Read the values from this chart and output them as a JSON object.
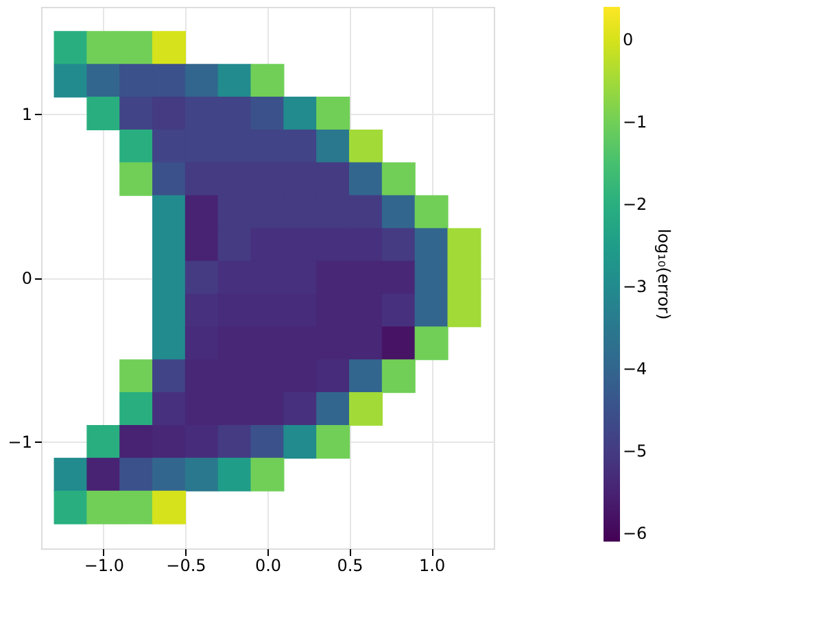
{
  "chart_data": {
    "type": "scatter",
    "marker": "square",
    "grid": true,
    "clabel": "log₁₀(error)",
    "clim": [
      -6.1,
      0.4
    ],
    "cticks": [
      {
        "value": -6,
        "label": "−6"
      },
      {
        "value": -5,
        "label": "−5"
      },
      {
        "value": -4,
        "label": "−4"
      },
      {
        "value": -3,
        "label": "−3"
      },
      {
        "value": -2,
        "label": "−2"
      },
      {
        "value": -1,
        "label": "−1"
      },
      0
    ],
    "xlim": [
      -1.38,
      1.38
    ],
    "ylim": [
      -1.65,
      1.65
    ],
    "xticks": [
      {
        "value": -1.0,
        "label": "−1.0"
      },
      {
        "value": -0.5,
        "label": "−0.5"
      },
      {
        "value": 0,
        "label": "0.0"
      },
      {
        "value": 0.5,
        "label": "0.5"
      },
      {
        "value": 1.0,
        "label": "1.0"
      }
    ],
    "yticks": [
      {
        "value": -1,
        "label": "−1"
      },
      0,
      1
    ],
    "x": [
      -1.2,
      -1.0,
      -0.8,
      -0.6,
      -1.2,
      -1.0,
      -0.8,
      -0.6,
      -0.4,
      -0.2,
      0.0,
      -1.0,
      -0.8,
      -0.6,
      -0.4,
      -0.2,
      0.0,
      0.2,
      0.4,
      -0.8,
      -0.6,
      -0.4,
      -0.2,
      0.0,
      0.2,
      0.4,
      0.6,
      -0.8,
      -0.6,
      -0.4,
      -0.2,
      0.0,
      0.2,
      0.4,
      0.6,
      0.8,
      -0.6,
      -0.4,
      -0.2,
      0.0,
      0.2,
      0.4,
      0.6,
      0.8,
      1.0,
      -0.6,
      -0.4,
      -0.2,
      0.0,
      0.2,
      0.4,
      0.6,
      0.8,
      1.0,
      1.2,
      -0.6,
      -0.4,
      -0.2,
      0.0,
      0.2,
      0.4,
      0.6,
      0.8,
      1.0,
      1.2,
      -0.6,
      -0.4,
      -0.2,
      0.0,
      0.2,
      0.4,
      0.6,
      0.8,
      1.0,
      1.2,
      -0.6,
      -0.4,
      -0.2,
      0.0,
      0.2,
      0.4,
      0.6,
      0.8,
      1.0,
      -0.8,
      -0.6,
      -0.4,
      -0.2,
      0.0,
      0.2,
      0.4,
      0.6,
      0.8,
      -0.8,
      -0.6,
      -0.4,
      -0.2,
      0.0,
      0.2,
      0.4,
      0.6,
      -1.0,
      -0.8,
      -0.6,
      -0.4,
      -0.2,
      0.0,
      0.2,
      0.4,
      -1.2,
      -1.0,
      -0.8,
      -0.6,
      -0.4,
      -0.2,
      0.0,
      -1.2,
      -1.0,
      -0.8,
      -0.6
    ],
    "values": [
      1.4,
      1.4,
      1.4,
      1.4,
      1.2,
      1.2,
      1.2,
      1.2,
      1.2,
      1.2,
      1.2,
      1.0,
      1.0,
      1.0,
      1.0,
      1.0,
      1.0,
      1.0,
      1.0,
      0.8,
      0.8,
      0.8,
      0.8,
      0.8,
      0.8,
      0.8,
      0.8,
      0.6,
      0.6,
      0.6,
      0.6,
      0.6,
      0.6,
      0.6,
      0.6,
      0.6,
      0.4,
      0.4,
      0.4,
      0.4,
      0.4,
      0.4,
      0.4,
      0.4,
      0.4,
      0.2,
      0.2,
      0.2,
      0.2,
      0.2,
      0.2,
      0.2,
      0.2,
      0.2,
      0.2,
      0,
      0,
      0,
      0,
      0,
      0,
      0,
      0,
      0,
      0,
      -0.2,
      -0.2,
      -0.2,
      -0.2,
      -0.2,
      -0.2,
      -0.2,
      -0.2,
      -0.2,
      -0.2,
      -0.4,
      -0.4,
      -0.4,
      -0.4,
      -0.4,
      -0.4,
      -0.4,
      -0.4,
      -0.4,
      -0.6,
      -0.6,
      -0.6,
      -0.6,
      -0.6,
      -0.6,
      -0.6,
      -0.6,
      -0.6,
      -0.8,
      -0.8,
      -0.8,
      -0.8,
      -0.8,
      -0.8,
      -0.8,
      -0.8,
      -1.0,
      -1.0,
      -1.0,
      -1.0,
      -1.0,
      -1.0,
      -1.0,
      -1.0,
      -1.2,
      -1.2,
      -1.2,
      -1.2,
      -1.2,
      -1.2,
      -1.2,
      -1.4,
      -1.4,
      -1.4,
      -1.4
    ],
    "cvalues": [
      -2,
      -1,
      -1,
      0,
      -3,
      -4,
      -4.5,
      -4.5,
      -4,
      -3,
      -1,
      -2,
      -4.8,
      -5,
      -4.8,
      -4.8,
      -4.5,
      -3,
      -1,
      -2,
      -4.8,
      -4.8,
      -4.8,
      -4.8,
      -4.8,
      -3.5,
      -0.5,
      -1,
      -4.5,
      -5,
      -5,
      -5,
      -5,
      -5,
      -4,
      -1,
      -3,
      -5.5,
      -5,
      -5,
      -5,
      -5,
      -5,
      -4,
      -1,
      -3,
      -5.5,
      -5,
      -5.2,
      -5.2,
      -5.2,
      -5.2,
      -5,
      -4,
      -0.5,
      -3,
      -5,
      -5.2,
      -5.2,
      -5.2,
      -5.4,
      -5.4,
      -5.4,
      -4,
      -0.5,
      -3,
      -5.2,
      -5.3,
      -5.3,
      -5.3,
      -5.4,
      -5.4,
      -5.2,
      -4,
      -0.5,
      -3,
      -5.3,
      -5.4,
      -5.4,
      -5.4,
      -5.4,
      -5.4,
      -5.8,
      -1,
      -1,
      -4.8,
      -5.4,
      -5.4,
      -5.4,
      -5.4,
      -5.3,
      -4,
      -1,
      -2,
      -5.2,
      -5.4,
      -5.4,
      -5.4,
      -5.2,
      -4,
      -0.5,
      -2,
      -5.5,
      -5.4,
      -5.3,
      -5,
      -4.5,
      -3,
      -1,
      -3,
      -5.5,
      -4.5,
      -4,
      -3.5,
      -2.5,
      -1,
      -2,
      -1,
      -1,
      0
    ]
  }
}
